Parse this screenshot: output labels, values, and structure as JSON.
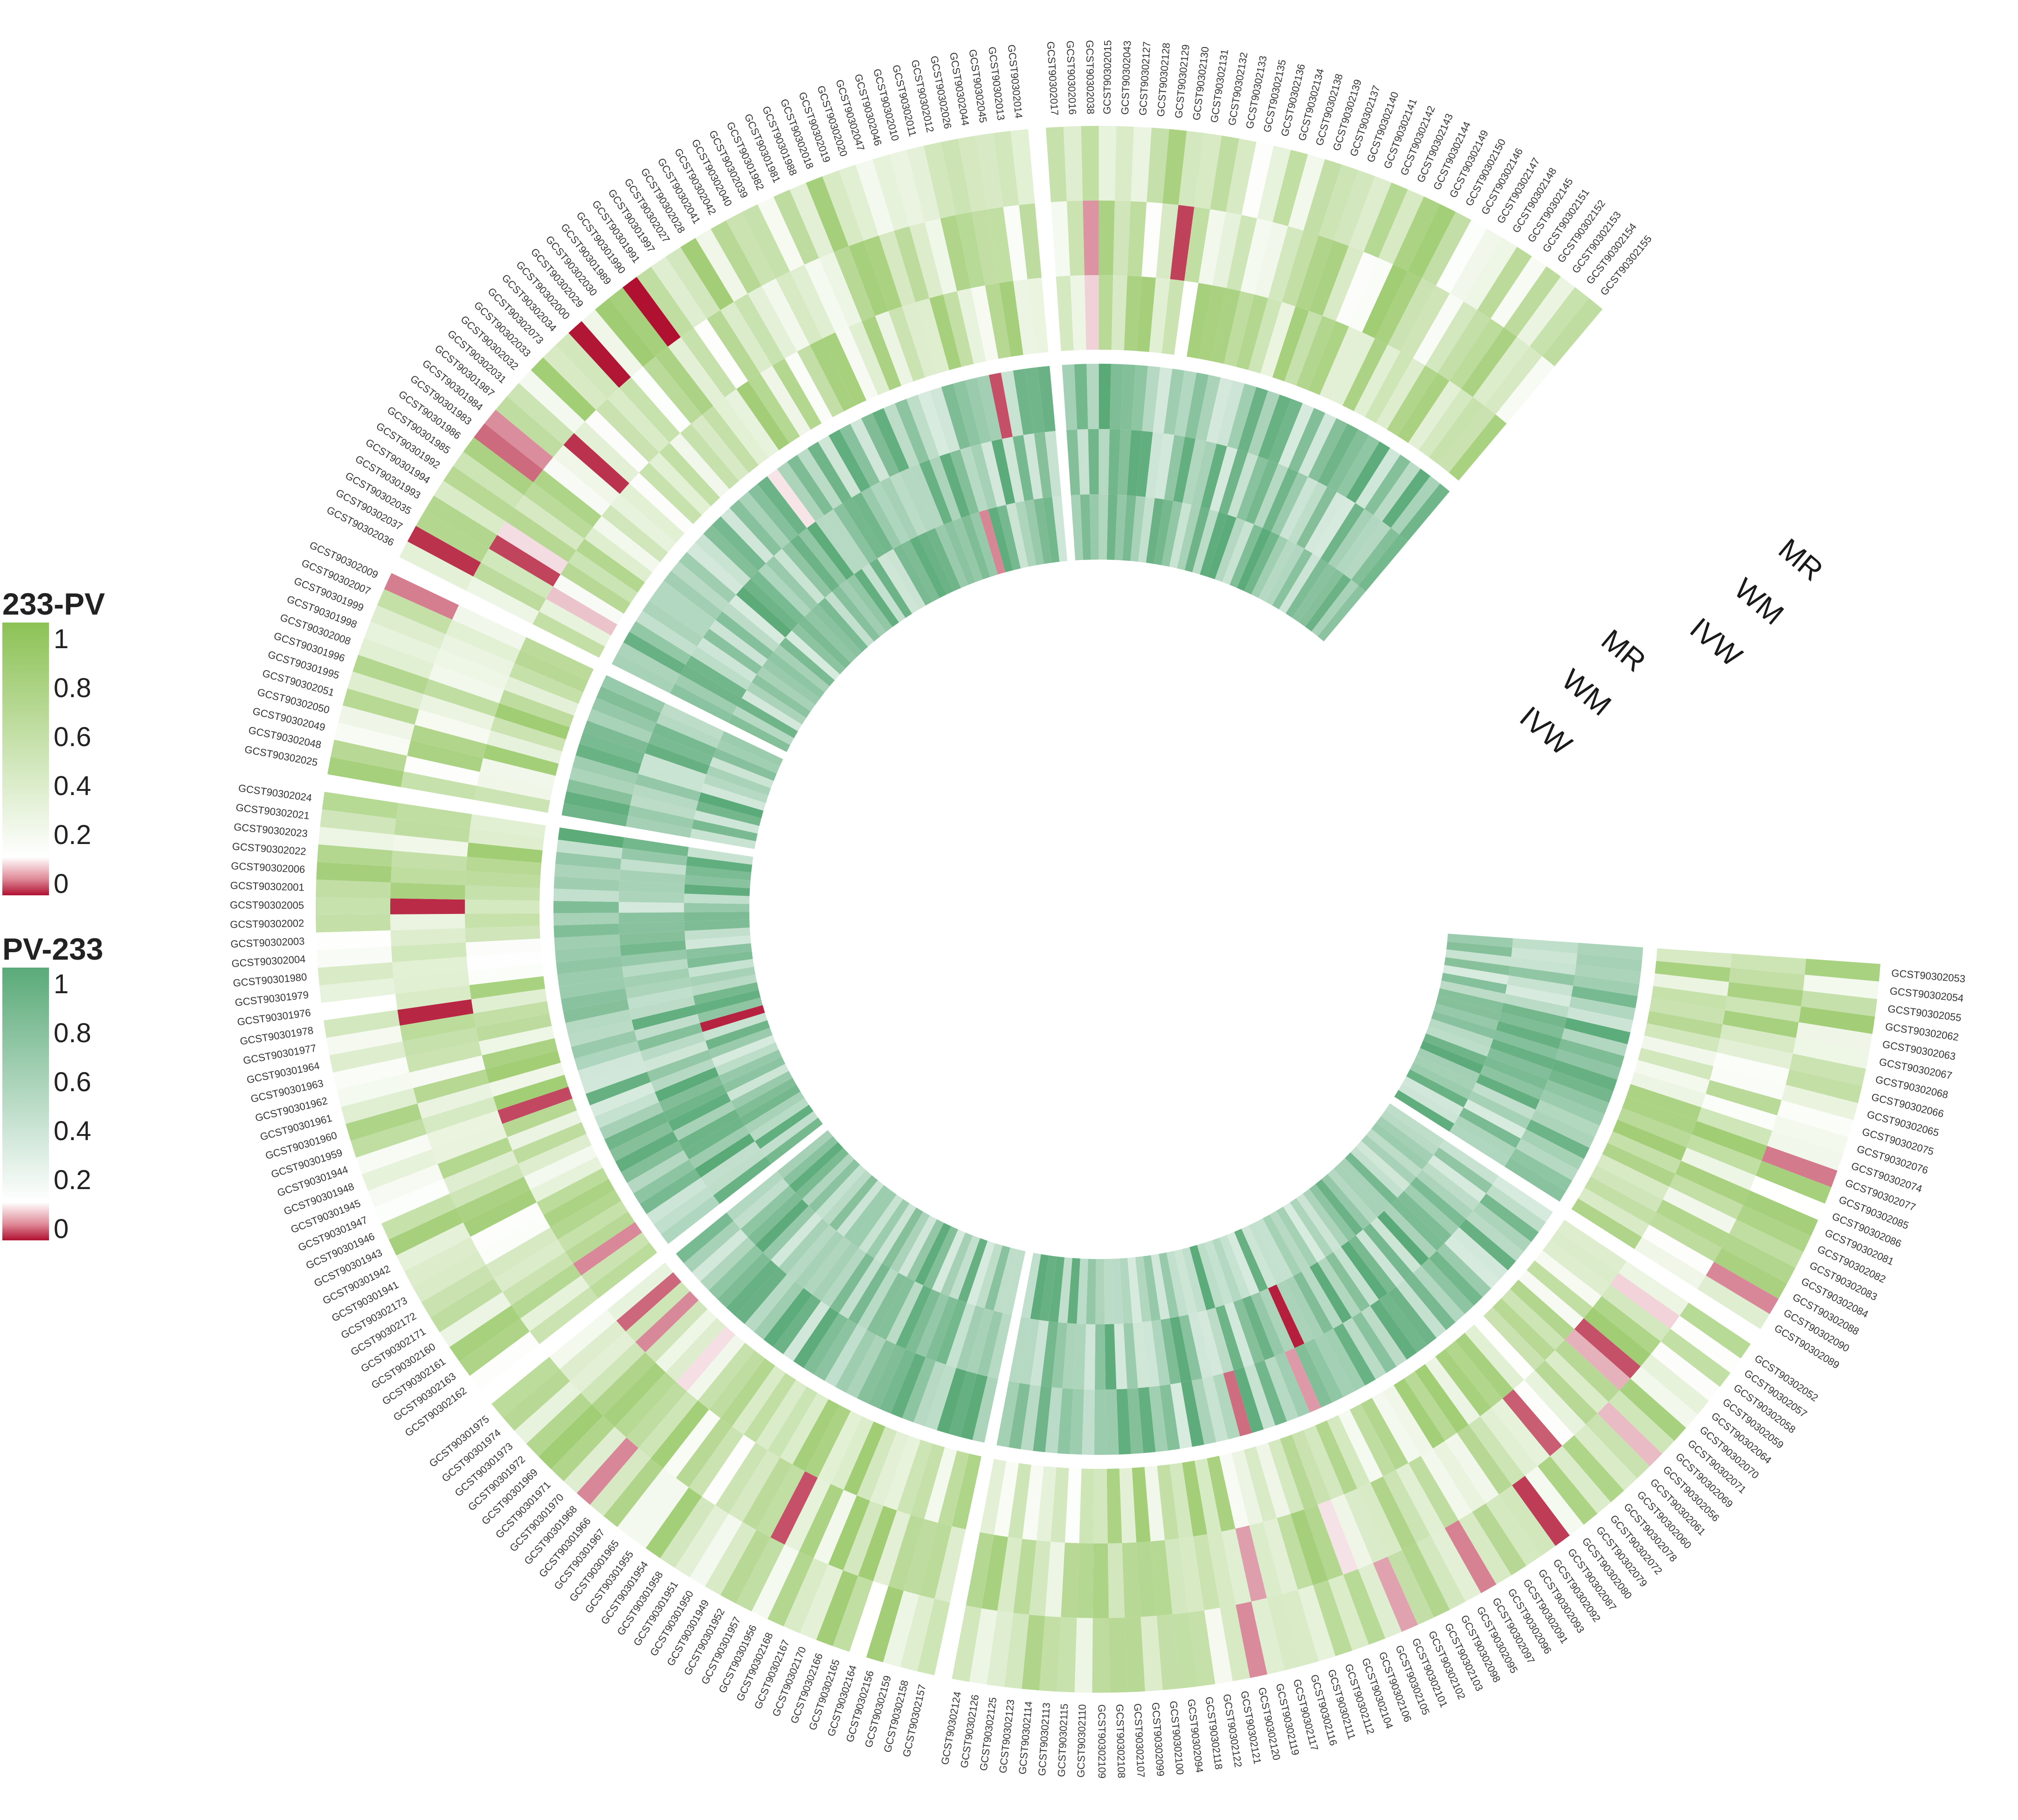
{
  "chart_data": {
    "type": "heatmap",
    "layout": "circular",
    "outer_track": {
      "legend_title": "233-PV",
      "methods": [
        "MR",
        "WM",
        "IVW"
      ],
      "colorscale": {
        "low": "#b01030",
        "mid": "#ffffff",
        "high": "#8cc255"
      },
      "range": [
        0,
        1
      ]
    },
    "inner_track": {
      "legend_title": "PV-233",
      "methods": [
        "MR",
        "WM",
        "IVW"
      ],
      "colorscale": {
        "low": "#b01030",
        "mid": "#ffffff",
        "high": "#5aaa78"
      },
      "range": [
        0,
        1
      ]
    },
    "legend_ticks": [
      "1",
      "0.8",
      "0.6",
      "0.4",
      "0.2",
      "0"
    ],
    "samples": [
      "GCST90302053",
      "GCST90302054",
      "GCST90302055",
      "GCST90302062",
      "GCST90302063",
      "GCST90302067",
      "GCST90302068",
      "GCST90302066",
      "GCST90302065",
      "GCST90302075",
      "GCST90302076",
      "GCST90302074",
      "GCST90302077",
      "GCST90302085",
      "GCST90302086",
      "GCST90302081",
      "GCST90302082",
      "GCST90302083",
      "GCST90302084",
      "GCST90302088",
      "GCST90302090",
      "GCST90302089",
      "GCST90302052",
      "GCST90302057",
      "GCST90302058",
      "GCST90302059",
      "GCST90302064",
      "GCST90302070",
      "GCST90302071",
      "GCST90302069",
      "GCST90302056",
      "GCST90302061",
      "GCST90302060",
      "GCST90302078",
      "GCST90302072",
      "GCST90302079",
      "GCST90302080",
      "GCST90302087",
      "GCST90302092",
      "GCST90302093",
      "GCST90302091",
      "GCST90302096",
      "GCST90302097",
      "GCST90302095",
      "GCST90302098",
      "GCST90302103",
      "GCST90302102",
      "GCST90302101",
      "GCST90302105",
      "GCST90302106",
      "GCST90302104",
      "GCST90302112",
      "GCST90302111",
      "GCST90302116",
      "GCST90302117",
      "GCST90302119",
      "GCST90302120",
      "GCST90302121",
      "GCST90302122",
      "GCST90302118",
      "GCST90302094",
      "GCST90302100",
      "GCST90302099",
      "GCST90302107",
      "GCST90302108",
      "GCST90302109",
      "GCST90302110",
      "GCST90302115",
      "GCST90302113",
      "GCST90302114",
      "GCST90302123",
      "GCST90302125",
      "GCST90302126",
      "GCST90302124",
      "GCST90302157",
      "GCST90302158",
      "GCST90302159",
      "GCST90302156",
      "GCST90302164",
      "GCST90302165",
      "GCST90302166",
      "GCST90302170",
      "GCST90302167",
      "GCST90302168",
      "GCST90301956",
      "GCST90301957",
      "GCST90301952",
      "GCST90301949",
      "GCST90301950",
      "GCST90301951",
      "GCST90301958",
      "GCST90301954",
      "GCST90301955",
      "GCST90301965",
      "GCST90301967",
      "GCST90301966",
      "GCST90301968",
      "GCST90301970",
      "GCST90301971",
      "GCST90301969",
      "GCST90301972",
      "GCST90301973",
      "GCST90301974",
      "GCST90301975",
      "GCST90302162",
      "GCST90302163",
      "GCST90302161",
      "GCST90302160",
      "GCST90302171",
      "GCST90302172",
      "GCST90302173",
      "GCST90301941",
      "GCST90301942",
      "GCST90301943",
      "GCST90301946",
      "GCST90301947",
      "GCST90301945",
      "GCST90301948",
      "GCST90301944",
      "GCST90301959",
      "GCST90301960",
      "GCST90301961",
      "GCST90301962",
      "GCST90301963",
      "GCST90301964",
      "GCST90301977",
      "GCST90301978",
      "GCST90301976",
      "GCST90301979",
      "GCST90301980",
      "GCST90302004",
      "GCST90302003",
      "GCST90302002",
      "GCST90302005",
      "GCST90302001",
      "GCST90302006",
      "GCST90302022",
      "GCST90302023",
      "GCST90302021",
      "GCST90302024",
      "GCST90302025",
      "GCST90302048",
      "GCST90302049",
      "GCST90302050",
      "GCST90302051",
      "GCST90301995",
      "GCST90301996",
      "GCST90302008",
      "GCST90301998",
      "GCST90301999",
      "GCST90302007",
      "GCST90302009",
      "GCST90302036",
      "GCST90302037",
      "GCST90302035",
      "GCST90301993",
      "GCST90301994",
      "GCST90301992",
      "GCST90301985",
      "GCST90301986",
      "GCST90301983",
      "GCST90301984",
      "GCST90301987",
      "GCST90302031",
      "GCST90302032",
      "GCST90302033",
      "GCST90302073",
      "GCST90302034",
      "GCST90302000",
      "GCST90302029",
      "GCST90302030",
      "GCST90301989",
      "GCST90301990",
      "GCST90301991",
      "GCST90301997",
      "GCST90302027",
      "GCST90302028",
      "GCST90302041",
      "GCST90302042",
      "GCST90302040",
      "GCST90302039",
      "GCST90301982",
      "GCST90301981",
      "GCST90301988",
      "GCST90302018",
      "GCST90302019",
      "GCST90302020",
      "GCST90302047",
      "GCST90302046",
      "GCST90302010",
      "GCST90302011",
      "GCST90302012",
      "GCST90302026",
      "GCST90302044",
      "GCST90302045",
      "GCST90302013",
      "GCST90302014",
      "GCST90302017",
      "GCST90302016",
      "GCST90302038",
      "GCST90302015",
      "GCST90302043",
      "GCST90302127",
      "GCST90302128",
      "GCST90302129",
      "GCST90302130",
      "GCST90302131",
      "GCST90302132",
      "GCST90302133",
      "GCST90302135",
      "GCST90302136",
      "GCST90302134",
      "GCST90302138",
      "GCST90302139",
      "GCST90302137",
      "GCST90302140",
      "GCST90302141",
      "GCST90302142",
      "GCST90302143",
      "GCST90302144",
      "GCST90302149",
      "GCST90302150",
      "GCST90302146",
      "GCST90302147",
      "GCST90302148",
      "GCST90302145",
      "GCST90302151",
      "GCST90302152",
      "GCST90302153",
      "GCST90302154",
      "GCST90302155"
    ],
    "gap_after_index": [
      21,
      73,
      103,
      139,
      151,
      196
    ]
  }
}
